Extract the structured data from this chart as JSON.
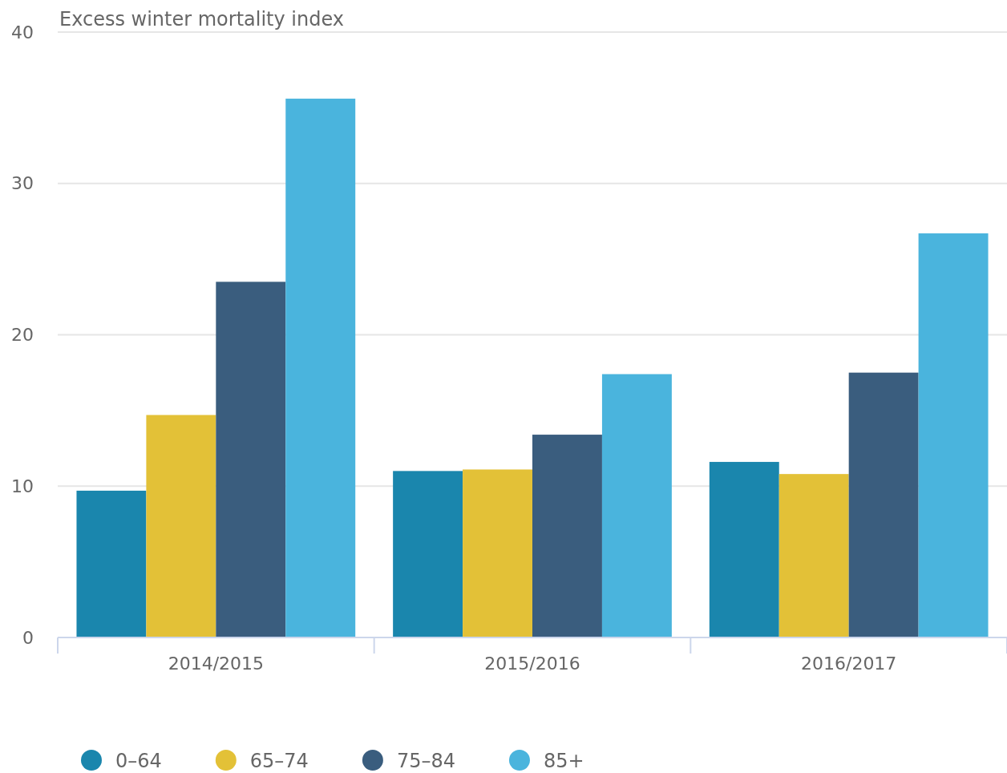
{
  "chart_data": {
    "type": "bar",
    "ylabel": "Excess winter mortality index",
    "categories": [
      "2014/2015",
      "2015/2016",
      "2016/2017"
    ],
    "series": [
      {
        "name": "0–64",
        "color": "#1a86ad",
        "values": [
          9.7,
          11.0,
          11.6
        ]
      },
      {
        "name": "65–74",
        "color": "#e3c137",
        "values": [
          14.7,
          11.1,
          10.8
        ]
      },
      {
        "name": "75–84",
        "color": "#3a5d7e",
        "values": [
          23.5,
          13.4,
          17.5
        ]
      },
      {
        "name": "85+",
        "color": "#4ab4dd",
        "values": [
          35.6,
          17.4,
          26.7
        ]
      }
    ],
    "ylim": [
      0,
      40
    ],
    "yticks": [
      0,
      10,
      20,
      30,
      40
    ],
    "grid": "y",
    "legend": "bottom left"
  }
}
